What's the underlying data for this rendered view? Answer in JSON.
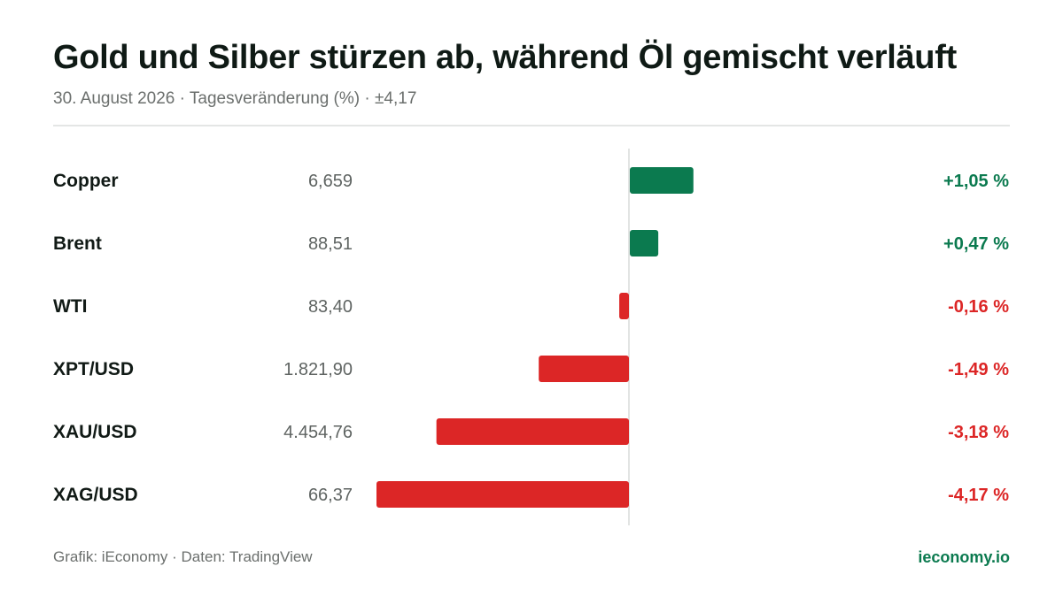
{
  "header": {
    "title": "Gold und Silber stürzen ab, während Öl gemischt verläuft",
    "subtitle": "30. August 2026 · Tagesveränderung (%) · ±4,17"
  },
  "footer": {
    "source": "Grafik: iEconomy · Daten: TradingView",
    "brand": "ieconomy.io"
  },
  "colors": {
    "positive": "#0b7a4f",
    "negative": "#dc2626",
    "axis": "#d9dcda",
    "label": "#111a16",
    "price": "#5f6462"
  },
  "chart_data": {
    "type": "bar",
    "orientation": "horizontal",
    "categories": [
      "Copper",
      "Brent",
      "WTI",
      "XPT/USD",
      "XAU/USD",
      "XAG/USD"
    ],
    "prices": [
      "6,659",
      "88,51",
      "83,40",
      "1.821,90",
      "4.454,76",
      "66,37"
    ],
    "values": [
      1.05,
      0.47,
      -0.16,
      -1.49,
      -3.18,
      -4.17
    ],
    "value_labels": [
      "+1,05 %",
      "+0,47 %",
      "-0,16 %",
      "-1,49 %",
      "-3,18 %",
      "-4,17 %"
    ],
    "xlim": [
      -4.17,
      4.17
    ],
    "grid": false,
    "legend": "none"
  }
}
